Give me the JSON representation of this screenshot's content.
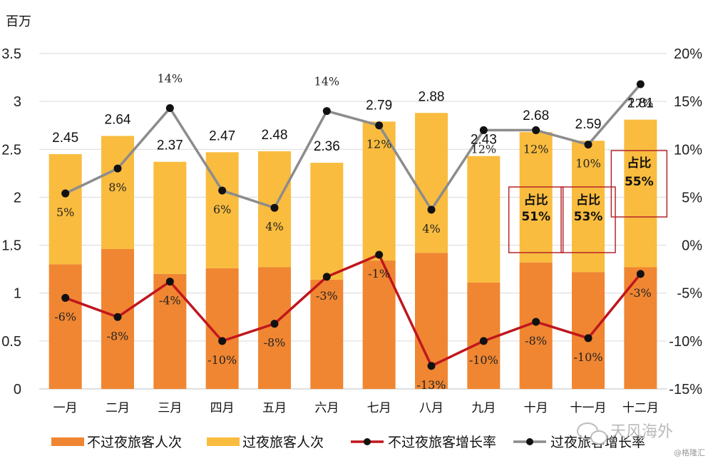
{
  "chart_data": {
    "type": "bar",
    "stacked": true,
    "y_unit_label": "百万",
    "categories": [
      "一月",
      "二月",
      "三月",
      "四月",
      "五月",
      "六月",
      "七月",
      "八月",
      "九月",
      "十月",
      "十一月",
      "十二月"
    ],
    "y_left": {
      "min": 0,
      "max": 3.5,
      "ticks": [
        "0",
        "0.5",
        "1",
        "1.5",
        "2",
        "2.5",
        "3",
        "3.5"
      ]
    },
    "y_right": {
      "min": -15,
      "max": 20,
      "ticks": [
        "-15%",
        "-10%",
        "-5%",
        "0%",
        "5%",
        "10%",
        "15%",
        "20%"
      ]
    },
    "grid": true,
    "legend_position": "bottom",
    "series": [
      {
        "name": "不过夜旅客人次",
        "kind": "bar",
        "axis": "left",
        "color": "#F08632",
        "values": [
          1.3,
          1.46,
          1.2,
          1.26,
          1.27,
          1.14,
          1.34,
          1.42,
          1.11,
          1.32,
          1.22,
          1.27
        ]
      },
      {
        "name": "过夜旅客人次",
        "kind": "bar",
        "axis": "left",
        "color": "#F9BC3E",
        "values": [
          1.15,
          1.18,
          1.17,
          1.21,
          1.21,
          1.22,
          1.45,
          1.46,
          1.32,
          1.36,
          1.37,
          1.54
        ]
      },
      {
        "name": "不过夜旅客增长率",
        "kind": "line",
        "axis": "right",
        "color": "#C0161D",
        "values": [
          -5.5,
          -7.5,
          -3.8,
          -10.0,
          -8.2,
          -3.3,
          -1.0,
          -12.6,
          -10.0,
          -8.0,
          -9.7,
          -3.0
        ],
        "labels": [
          "-6%",
          "-8%",
          "-4%",
          "-10%",
          "-8%",
          "-3%",
          "-1%",
          "-13%",
          "-10%",
          "-8%",
          "-10%",
          "-3%"
        ]
      },
      {
        "name": "过夜旅客增长率",
        "kind": "line",
        "axis": "right",
        "color": "#8C8C8C",
        "values": [
          5.4,
          8.0,
          14.3,
          5.7,
          3.9,
          14.0,
          12.5,
          3.7,
          12.0,
          12.0,
          10.5,
          16.8
        ],
        "labels": [
          "5%",
          "8%",
          "14%",
          "6%",
          "4%",
          "14%",
          "12%",
          "4%",
          "12%",
          "12%",
          "10%",
          "17%"
        ]
      }
    ],
    "totals": [
      "2.45",
      "2.64",
      "2.37",
      "2.47",
      "2.48",
      "2.36",
      "2.79",
      "2.88",
      "2.43",
      "2.68",
      "2.59",
      "2.81"
    ],
    "annotations": [
      {
        "category_index": 9,
        "line1": "占比",
        "line2": "51%"
      },
      {
        "category_index": 10,
        "line1": "占比",
        "line2": "53%"
      },
      {
        "category_index": 11,
        "line1": "占比",
        "line2": "55%"
      }
    ]
  },
  "watermark": {
    "main": "天风海外",
    "sub": "@格隆汇"
  }
}
